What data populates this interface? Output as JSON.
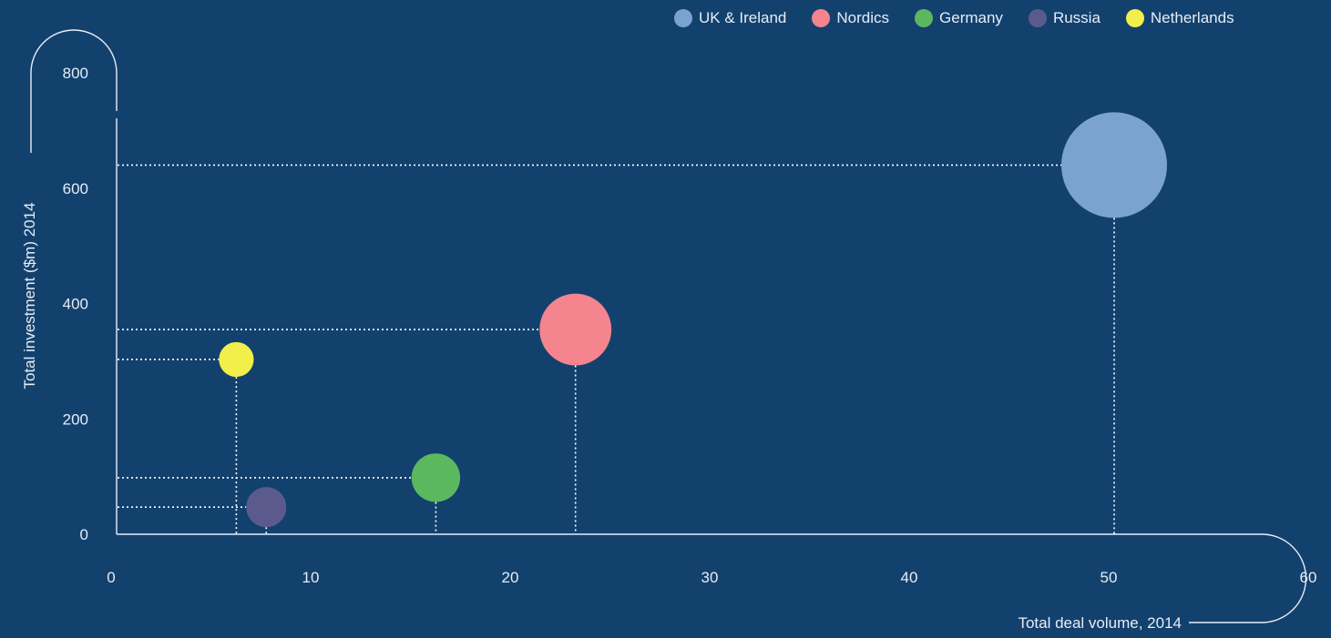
{
  "chart_data": {
    "type": "scatter",
    "title": "",
    "xlabel": "Total deal volume, 2014",
    "ylabel": "Total investment ($m) 2014",
    "xlim": [
      0,
      60
    ],
    "ylim": [
      0,
      800
    ],
    "x_ticks": [
      "0",
      "10",
      "20",
      "30",
      "40",
      "50",
      "60"
    ],
    "y_ticks": [
      "0",
      "200",
      "400",
      "600",
      "800"
    ],
    "legend_position": "top-right",
    "grid": false,
    "series": [
      {
        "name": "UK & Ireland",
        "x": 50,
        "y": 640,
        "color": "#7ba3d1",
        "size_rel": 1.0
      },
      {
        "name": "Nordics",
        "x": 23,
        "y": 355,
        "color": "#f4848e",
        "size_rel": 0.68
      },
      {
        "name": "Germany",
        "x": 16,
        "y": 98,
        "color": "#5cb85f",
        "size_rel": 0.46
      },
      {
        "name": "Russia",
        "x": 7.5,
        "y": 47,
        "color": "#5a5b8c",
        "size_rel": 0.38
      },
      {
        "name": "Netherlands",
        "x": 6,
        "y": 303,
        "color": "#f2ee4a",
        "size_rel": 0.33
      }
    ]
  }
}
